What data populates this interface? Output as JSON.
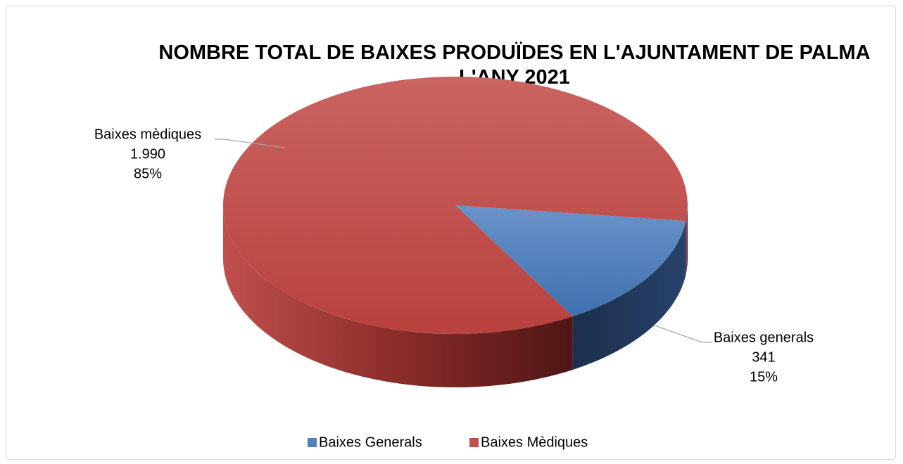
{
  "chart_data": {
    "type": "pie3d",
    "title": "NOMBRE TOTAL DE BAIXES PRODUÏDES EN L'AJUNTAMENT DE PALMA L'ANY 2021",
    "categories": [
      "Baixes Generals",
      "Baixes Mèdiques"
    ],
    "label_names": [
      "Baixes generals",
      "Baixes mèdiques"
    ],
    "values": [
      341,
      1990
    ],
    "value_labels": [
      "341",
      "1.990"
    ],
    "percent_labels": [
      "15%",
      "85%"
    ],
    "colors": [
      "#4f81bd",
      "#c0504d"
    ],
    "legend": "bottom"
  }
}
